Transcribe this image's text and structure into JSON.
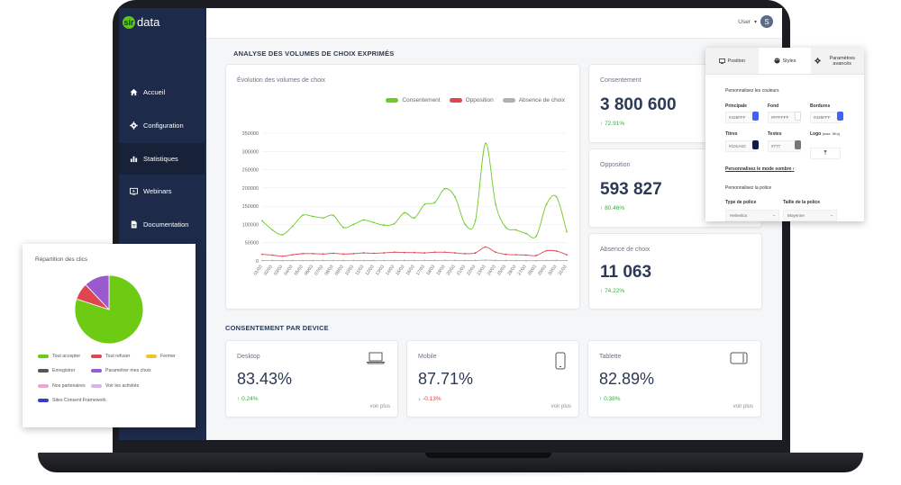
{
  "sidebar": {
    "logo_text": "data",
    "logo_mark": "sir",
    "items": [
      {
        "label": "Accueil",
        "icon": "home-icon"
      },
      {
        "label": "Configuration",
        "icon": "gear-icon"
      },
      {
        "label": "Statistiques",
        "icon": "bar-chart-icon"
      },
      {
        "label": "Webinars",
        "icon": "video-icon"
      },
      {
        "label": "Documentation",
        "icon": "document-icon"
      }
    ]
  },
  "topbar": {
    "user_label": "User",
    "avatar_letter": "S"
  },
  "main": {
    "section1_title": "ANALYSE DES VOLUMES DE CHOIX EXPRIMÉS",
    "section2_title": "CONSENTEMENT PAR DEVICE",
    "chart_card_title": "Évolution des volumes de choix"
  },
  "stats": [
    {
      "title": "Consentement",
      "value": "3 800 600",
      "delta": "72.91%",
      "direction": "up"
    },
    {
      "title": "Opposition",
      "value": "593 827",
      "delta": "80.46%",
      "direction": "up"
    },
    {
      "title": "Absence de choix",
      "value": "11 063",
      "delta": "74.22%",
      "direction": "up"
    }
  ],
  "devices": [
    {
      "title": "Desktop",
      "value": "83.43%",
      "delta": "0.24%",
      "direction": "up",
      "link": "voir plus",
      "icon": "laptop-icon"
    },
    {
      "title": "Mobile",
      "value": "87.71%",
      "delta": "-0.13%",
      "direction": "down",
      "link": "voir plus",
      "icon": "phone-icon"
    },
    {
      "title": "Tablette",
      "value": "82.89%",
      "delta": "0.38%",
      "direction": "up",
      "link": "voir plus",
      "icon": "tablet-icon"
    }
  ],
  "chart_data": [
    {
      "type": "line",
      "title": "Évolution des volumes de choix",
      "x": [
        "01/03",
        "02/03",
        "03/03",
        "04/03",
        "05/03",
        "06/03",
        "07/03",
        "08/03",
        "09/03",
        "10/03",
        "11/03",
        "12/03",
        "13/03",
        "14/03",
        "15/03",
        "16/03",
        "17/03",
        "18/03",
        "19/03",
        "20/03",
        "21/03",
        "22/03",
        "23/03",
        "24/03",
        "25/03",
        "26/03",
        "27/03",
        "28/03",
        "29/03",
        "30/03",
        "31/03"
      ],
      "yticks": [
        0,
        50000,
        100000,
        150000,
        200000,
        250000,
        300000,
        350000
      ],
      "ylim": [
        0,
        350000
      ],
      "grid": true,
      "legend_position": "top-right",
      "series": [
        {
          "name": "Consentement",
          "color": "#6ccb22",
          "values": [
            110000,
            85000,
            72000,
            95000,
            125000,
            122000,
            118000,
            125000,
            92000,
            100000,
            112000,
            105000,
            98000,
            102000,
            132000,
            118000,
            155000,
            160000,
            198000,
            175000,
            100000,
            110000,
            322000,
            155000,
            92000,
            85000,
            75000,
            68000,
            155000,
            175000,
            80000
          ]
        },
        {
          "name": "Opposition",
          "color": "#e0464f",
          "values": [
            18000,
            16000,
            13000,
            17000,
            20000,
            20000,
            19000,
            21000,
            19000,
            20000,
            22000,
            21000,
            22000,
            24000,
            23000,
            23000,
            22000,
            24000,
            24000,
            22000,
            20000,
            22000,
            38000,
            24000,
            18000,
            17000,
            16000,
            15000,
            28000,
            27000,
            17000
          ]
        },
        {
          "name": "Absence de choix",
          "color": "#b0b0b0",
          "values": [
            1000,
            1200,
            900,
            1100,
            1300,
            1200,
            1100,
            1300,
            1100,
            1200,
            1300,
            1200,
            1100,
            1200,
            1400,
            1300,
            1400,
            1400,
            1600,
            1500,
            1200,
            1300,
            2200,
            1500,
            1100,
            1000,
            900,
            900,
            1400,
            1500,
            1000
          ]
        }
      ]
    },
    {
      "type": "pie",
      "title": "Répartition des clics",
      "series": [
        {
          "name": "Tout accepter",
          "color": "#6ccb12",
          "value": 80
        },
        {
          "name": "Tout refuser",
          "color": "#e0464f",
          "value": 8
        },
        {
          "name": "Fermer",
          "color": "#f4c430",
          "value": 0
        },
        {
          "name": "Enregistrer",
          "color": "#555555",
          "value": 0
        },
        {
          "name": "Paramétrer mes choix",
          "color": "#9b59d0",
          "value": 12
        },
        {
          "name": "Nos partenaires",
          "color": "#f0a6cf",
          "value": 0
        },
        {
          "name": "Voir les activités",
          "color": "#d7b4ec",
          "value": 0
        },
        {
          "name": "Sites Consent Framework",
          "color": "#3c3cc8",
          "value": 0
        }
      ]
    }
  ],
  "settings_panel": {
    "tabs": [
      {
        "label": "Position",
        "icon": "monitor-icon"
      },
      {
        "label": "Styles",
        "icon": "palette-icon"
      },
      {
        "label": "Paramètres avancés",
        "icon": "gear-icon"
      }
    ],
    "colors_title": "Personnalisez les couleurs",
    "fields": [
      {
        "label": "Principale",
        "value": "#425FFF",
        "color": "#425fff"
      },
      {
        "label": "Fond",
        "value": "#FFFFFF",
        "color": "#ffffff"
      },
      {
        "label": "Bordures",
        "value": "#425FFF",
        "color": "#425fff"
      },
      {
        "label": "Titres",
        "value": "#101A4C",
        "color": "#101a4c"
      },
      {
        "label": "Textes",
        "value": "#777",
        "color": "#777777"
      },
      {
        "label": "Logo",
        "value": "",
        "hint": "(max. 5Ko)"
      }
    ],
    "dark_mode_link": "Personnalisez le mode sombre",
    "font_title": "Personnalisez la police",
    "font_type_label": "Type de police",
    "font_type_value": "Helvetica",
    "font_size_label": "Taille de la police",
    "font_size_value": "Moyenne"
  }
}
